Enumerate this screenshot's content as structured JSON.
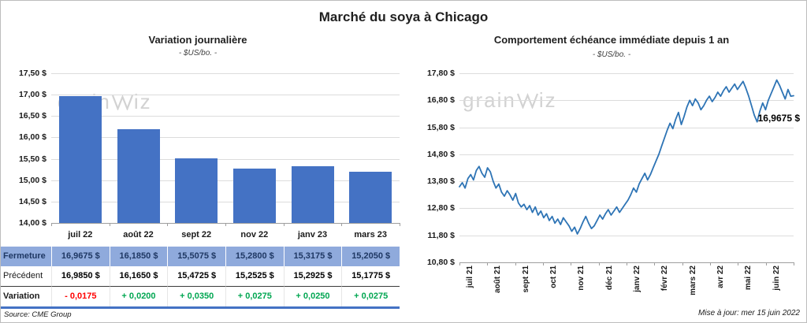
{
  "page": {
    "title": "Marché du soya à Chicago",
    "source": "Source: CME Group",
    "updated": "Mise à jour: mer 15 juin 2022",
    "watermark": {
      "pre": "grain",
      "post": "iz"
    }
  },
  "table": {
    "row_labels": [
      "Fermeture",
      "Précédent",
      "Variation"
    ],
    "fermeture": [
      "16,9675  $",
      "16,1850  $",
      "15,5075  $",
      "15,2800  $",
      "15,3175  $",
      "15,2050  $"
    ],
    "precedent": [
      "16,9850  $",
      "16,1650  $",
      "15,4725  $",
      "15,2525  $",
      "15,2925  $",
      "15,1775  $"
    ],
    "variation": [
      "- 0,0175",
      "+ 0,0200",
      "+ 0,0350",
      "+ 0,0275",
      "+ 0,0250",
      "+ 0,0275"
    ],
    "variation_colors": [
      "#FF0000",
      "#00A651",
      "#00A651",
      "#00A651",
      "#00A651",
      "#00A651"
    ]
  },
  "chart_data": [
    {
      "type": "bar",
      "title": "Variation  journalière",
      "subtitle": "- $US/bo. -",
      "categories": [
        "juil 22",
        "août 22",
        "sept 22",
        "nov 22",
        "janv 23",
        "mars 23"
      ],
      "values": [
        16.9675,
        16.185,
        15.5075,
        15.28,
        15.3175,
        15.205
      ],
      "ylim": [
        14.0,
        17.5
      ],
      "ytick_labels": [
        "17,50 $",
        "17,00 $",
        "16,50 $",
        "16,00 $",
        "15,50 $",
        "15,00 $",
        "14,50 $",
        "14,00 $"
      ],
      "bar_color": "#4472C4",
      "grid": true,
      "xlabel": "",
      "ylabel": ""
    },
    {
      "type": "line",
      "title": "Comportement échéance immédiate depuis 1 an",
      "subtitle": "- $US/bo. -",
      "x_labels": [
        "juil 21",
        "août 21",
        "sept 21",
        "oct 21",
        "nov 21",
        "déc 21",
        "janv 22",
        "févr 22",
        "mars 22",
        "avr 22",
        "mai 22",
        "juin 22"
      ],
      "values": [
        13.6,
        13.75,
        13.55,
        13.9,
        14.05,
        13.85,
        14.2,
        14.35,
        14.1,
        13.95,
        14.3,
        14.15,
        13.8,
        13.55,
        13.7,
        13.4,
        13.25,
        13.45,
        13.3,
        13.1,
        13.35,
        13.0,
        12.85,
        12.95,
        12.75,
        12.9,
        12.65,
        12.85,
        12.55,
        12.7,
        12.45,
        12.6,
        12.35,
        12.5,
        12.25,
        12.4,
        12.2,
        12.45,
        12.3,
        12.15,
        11.95,
        12.1,
        11.85,
        12.05,
        12.3,
        12.5,
        12.25,
        12.05,
        12.15,
        12.35,
        12.55,
        12.4,
        12.6,
        12.75,
        12.55,
        12.7,
        12.85,
        12.65,
        12.8,
        12.95,
        13.1,
        13.3,
        13.55,
        13.4,
        13.7,
        13.9,
        14.1,
        13.85,
        14.05,
        14.3,
        14.55,
        14.8,
        15.1,
        15.4,
        15.7,
        15.95,
        15.75,
        16.1,
        16.35,
        15.9,
        16.2,
        16.55,
        16.8,
        16.6,
        16.85,
        16.7,
        16.45,
        16.6,
        16.8,
        16.95,
        16.75,
        16.9,
        17.1,
        16.95,
        17.15,
        17.3,
        17.1,
        17.25,
        17.4,
        17.2,
        17.35,
        17.5,
        17.25,
        16.95,
        16.6,
        16.25,
        16.0,
        16.4,
        16.7,
        16.45,
        16.8,
        17.05,
        17.3,
        17.55,
        17.35,
        17.1,
        16.85,
        17.2,
        16.95,
        16.9675
      ],
      "ylim": [
        10.8,
        17.8
      ],
      "ytick_labels": [
        "17,80 $",
        "16,80 $",
        "15,80 $",
        "14,80 $",
        "13,80 $",
        "12,80 $",
        "11,80 $",
        "10,80 $"
      ],
      "line_color": "#2E74B5",
      "annotation": "16,9675 $",
      "annotation_value": 16.9675,
      "grid": true,
      "xlabel": "",
      "ylabel": ""
    }
  ]
}
